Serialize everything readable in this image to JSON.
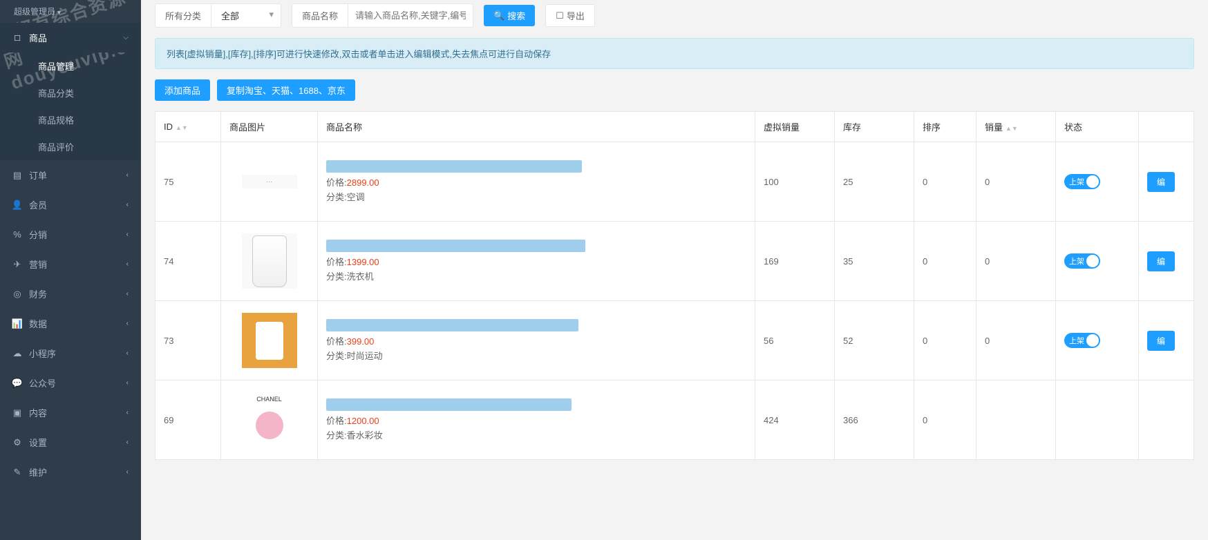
{
  "sidebar": {
    "header": "超级管理员",
    "menu": [
      {
        "icon": "□",
        "label": "商品",
        "expanded": true,
        "active": true
      },
      {
        "icon": "▤",
        "label": "订单"
      },
      {
        "icon": "👤",
        "label": "会员"
      },
      {
        "icon": "%",
        "label": "分销"
      },
      {
        "icon": "✈",
        "label": "营销"
      },
      {
        "icon": "◎",
        "label": "财务"
      },
      {
        "icon": "📊",
        "label": "数据"
      },
      {
        "icon": "☁",
        "label": "小程序"
      },
      {
        "icon": "💬",
        "label": "公众号"
      },
      {
        "icon": "▣",
        "label": "内容"
      },
      {
        "icon": "⚙",
        "label": "设置"
      },
      {
        "icon": "✎",
        "label": "维护"
      }
    ],
    "submenu": [
      {
        "label": "商品管理",
        "active": true
      },
      {
        "label": "商品分类"
      },
      {
        "label": "商品规格"
      },
      {
        "label": "商品评价"
      }
    ]
  },
  "filter": {
    "cat_label": "所有分类",
    "cat_value": "全部",
    "name_label": "商品名称",
    "name_placeholder": "请输入商品名称,关键字,编号",
    "search_btn": "搜索",
    "export_btn": "导出"
  },
  "alert_text": "列表[虚拟销量],[库存],[排序]可进行快速修改,双击或者单击进入编辑模式,失去焦点可进行自动保存",
  "actions": {
    "add": "添加商品",
    "copy": "复制淘宝、天猫、1688、京东"
  },
  "table": {
    "headers": {
      "id": "ID",
      "img": "商品图片",
      "name": "商品名称",
      "vsales": "虚拟销量",
      "stock": "库存",
      "sort": "排序",
      "sales": "销量",
      "status": "状态"
    },
    "price_prefix": "价格:",
    "cat_prefix": "分类:",
    "toggle_on": "上架",
    "edit": "编",
    "rows": [
      {
        "id": "75",
        "price": "2899.00",
        "category": "空调",
        "vsales": "100",
        "stock": "25",
        "sort": "0",
        "sales": "0",
        "img_type": "ac"
      },
      {
        "id": "74",
        "price": "1399.00",
        "category": "洗衣机",
        "vsales": "169",
        "stock": "35",
        "sort": "0",
        "sales": "0",
        "img_type": "wash"
      },
      {
        "id": "73",
        "price": "399.00",
        "category": "时尚运动",
        "vsales": "56",
        "stock": "52",
        "sort": "0",
        "sales": "0",
        "img_type": "clothes"
      },
      {
        "id": "69",
        "price": "1200.00",
        "category": "香水彩妆",
        "vsales": "424",
        "stock": "366",
        "sort": "0",
        "sales": "",
        "img_type": "perfume",
        "perfume_brand": "CHANEL"
      }
    ]
  },
  "watermark": "全都有综合资源网\ndouyouvip.com"
}
